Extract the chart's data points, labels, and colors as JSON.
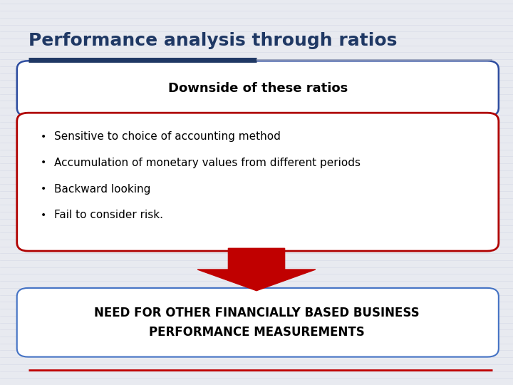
{
  "title": "Performance analysis through ratios",
  "title_color": "#1F3864",
  "title_fontsize": 18,
  "background_color": "#E8EAF0",
  "top_line_color1": "#1F3864",
  "top_line_color2": "#A0A8C0",
  "bottom_line_color": "#C00000",
  "box1_text": "Downside of these ratios",
  "box1_border_color": "#2E4DA0",
  "box1_bg": "#FFFFFF",
  "box2_items": [
    "Sensitive to choice of accounting method",
    "Accumulation of monetary values from different periods",
    "Backward looking",
    "Fail to consider risk."
  ],
  "box2_border_color": "#B00000",
  "box2_bg": "#FFFFFF",
  "arrow_color": "#C00000",
  "box3_text_line1": "NEED FOR OTHER FINANCIALLY BASED BUSINESS",
  "box3_text_line2": "PERFORMANCE MEASUREMENTS",
  "box3_border_color": "#4472C4",
  "box3_bg": "#FFFFFF",
  "bullet_char": "•"
}
